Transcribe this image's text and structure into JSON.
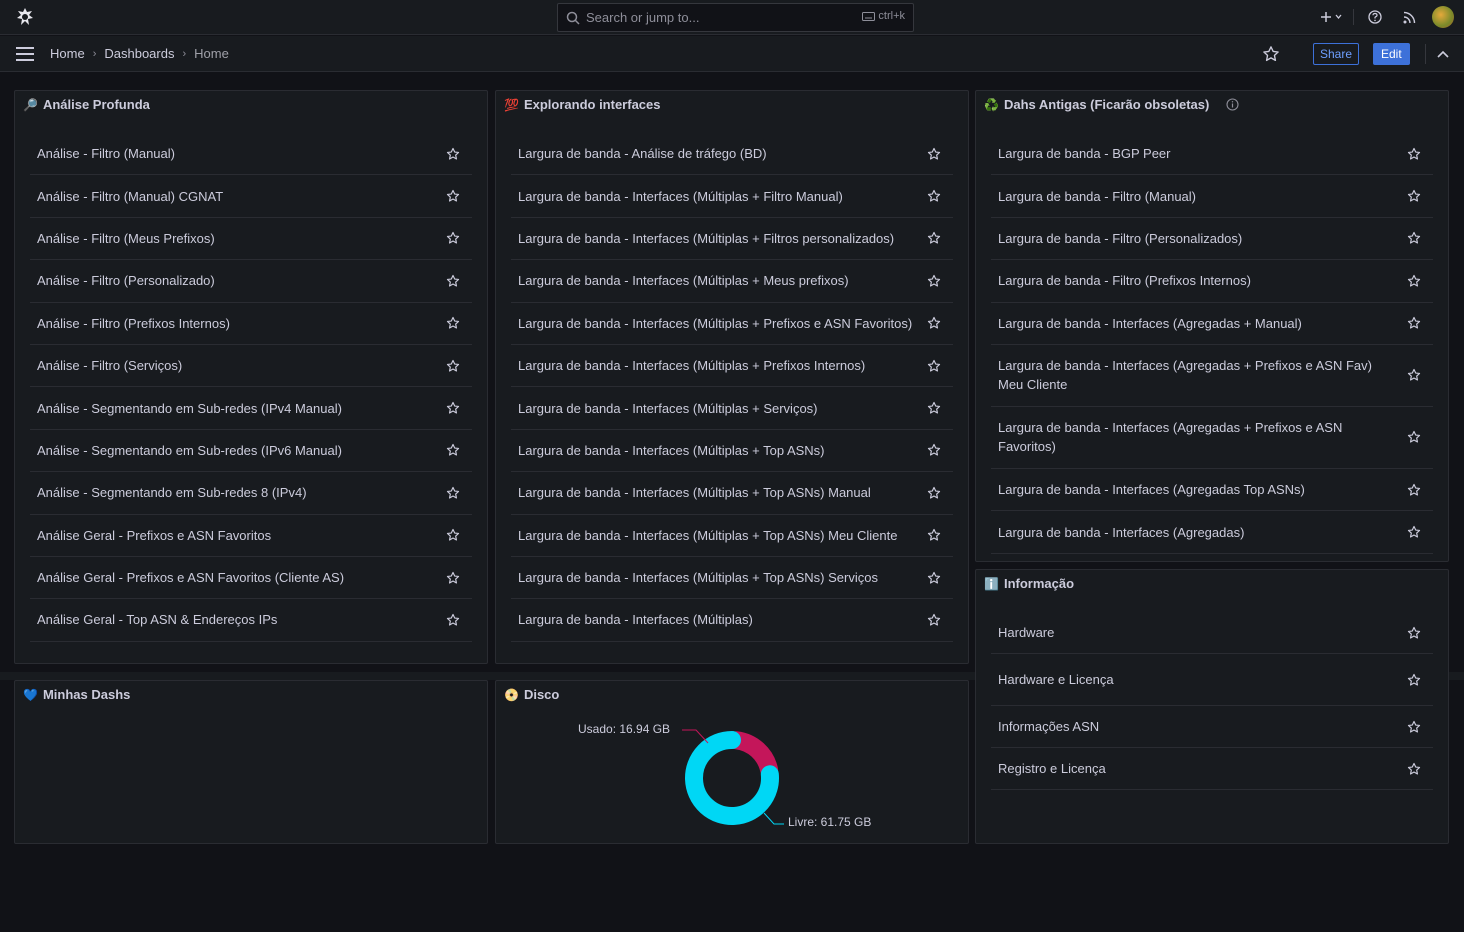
{
  "topbar": {
    "search_placeholder": "Search or jump to...",
    "search_shortcut": "ctrl+k"
  },
  "navbar": {
    "breadcrumbs": [
      "Home",
      "Dashboards",
      "Home"
    ],
    "share_label": "Share",
    "edit_label": "Edit"
  },
  "panels": {
    "analise": {
      "emoji": "🔎",
      "title": "Análise Profunda",
      "items": [
        "Análise - Filtro (Manual)",
        "Análise - Filtro (Manual) CGNAT",
        "Análise - Filtro (Meus Prefixos)",
        "Análise - Filtro (Personalizado)",
        "Análise - Filtro (Prefixos Internos)",
        "Análise - Filtro (Serviços)",
        "Análise - Segmentando em Sub-redes (IPv4 Manual)",
        "Análise - Segmentando em Sub-redes (IPv6 Manual)",
        "Análise - Segmentando em Sub-redes 8 (IPv4)",
        "Análise Geral - Prefixos e ASN Favoritos",
        "Análise Geral - Prefixos e ASN Favoritos (Cliente AS)",
        "Análise Geral - Top ASN & Endereços IPs"
      ]
    },
    "explorando": {
      "emoji": "💯",
      "title": "Explorando interfaces",
      "items": [
        "Largura de banda - Análise de tráfego (BD)",
        "Largura de banda - Interfaces (Múltiplas + Filtro Manual)",
        "Largura de banda - Interfaces (Múltiplas + Filtros personalizados)",
        "Largura de banda - Interfaces (Múltiplas + Meus prefixos)",
        "Largura de banda - Interfaces (Múltiplas + Prefixos e ASN Favoritos)",
        "Largura de banda - Interfaces (Múltiplas + Prefixos Internos)",
        "Largura de banda - Interfaces (Múltiplas + Serviços)",
        "Largura de banda - Interfaces (Múltiplas + Top ASNs)",
        "Largura de banda - Interfaces (Múltiplas + Top ASNs) Manual",
        "Largura de banda - Interfaces (Múltiplas + Top ASNs) Meu Cliente",
        "Largura de banda - Interfaces (Múltiplas + Top ASNs) Serviços",
        "Largura de banda - Interfaces (Múltiplas)"
      ]
    },
    "antigas": {
      "emoji": "♻️",
      "title": "Dahs Antigas (Ficarão obsoletas)",
      "items": [
        "Largura de banda - BGP Peer",
        "Largura de banda - Filtro (Manual)",
        "Largura de banda - Filtro (Personalizados)",
        "Largura de banda - Filtro (Prefixos Internos)",
        "Largura de banda - Interfaces (Agregadas + Manual)",
        "Largura de banda - Interfaces (Agregadas + Prefixos e ASN Fav) Meu Cliente",
        "Largura de banda - Interfaces (Agregadas + Prefixos e ASN Favoritos)",
        "Largura de banda - Interfaces (Agregadas Top ASNs)",
        "Largura de banda - Interfaces (Agregadas)"
      ]
    },
    "informacao": {
      "emoji": "ℹ️",
      "title": "Informação",
      "items": [
        "Hardware",
        "Hardware e Licença",
        "Informações ASN",
        "Registro e Licença"
      ]
    },
    "minhas": {
      "emoji": "💙",
      "title": "Minhas Dashs"
    },
    "disco": {
      "emoji": "📀",
      "title": "Disco",
      "used_label": "Usado: 16.94 GB",
      "free_label": "Livre: 61.75 GB"
    }
  },
  "chart_data": {
    "type": "pie",
    "categories": [
      "Usado",
      "Livre"
    ],
    "values": [
      16.94,
      61.75
    ],
    "unit": "GB",
    "colors": [
      "#c4165a",
      "#00d7f5"
    ]
  },
  "colors": {
    "background": "#111217",
    "panel": "#181b1f",
    "accent": "#3d71d9"
  }
}
